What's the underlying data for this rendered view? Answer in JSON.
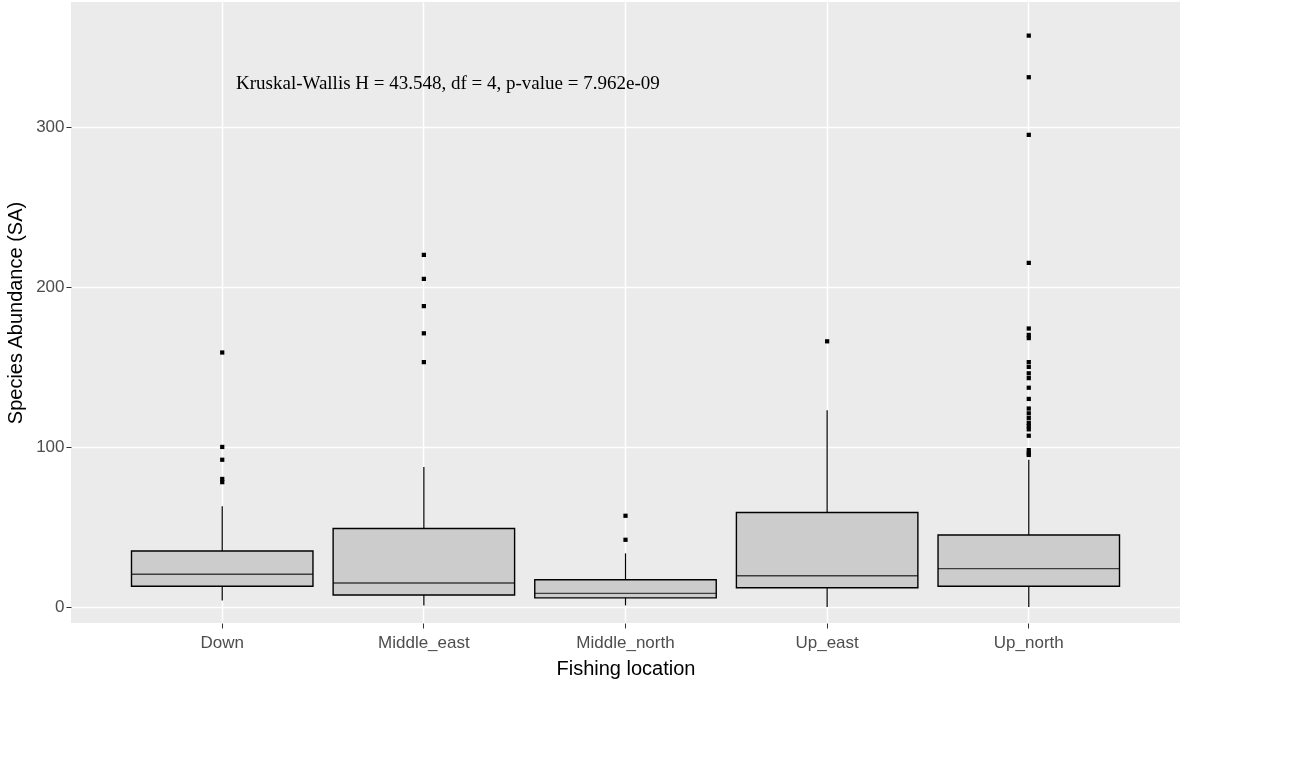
{
  "chart_data": {
    "type": "box",
    "xlabel": "Fishing location",
    "ylabel": "Species Abundance (SA)",
    "categories": [
      "Down",
      "Middle_east",
      "Middle_north",
      "Up_east",
      "Up_north"
    ],
    "boxes": [
      {
        "low": 4,
        "q1": 13,
        "median": 20.5,
        "q3": 35,
        "high": 63,
        "outliers": [
          159,
          100,
          92,
          80,
          78
        ]
      },
      {
        "low": 1,
        "q1": 7.5,
        "median": 15,
        "q3": 49,
        "high": 87.5,
        "outliers": [
          220,
          205,
          188,
          171,
          153
        ]
      },
      {
        "low": 1,
        "q1": 5.7,
        "median": 8.5,
        "q3": 17,
        "high": 33.5,
        "outliers": [
          57,
          42
        ]
      },
      {
        "low": 0,
        "q1": 12,
        "median": 19.5,
        "q3": 59,
        "high": 123,
        "outliers": [
          166
        ]
      },
      {
        "low": 0,
        "q1": 13,
        "median": 24,
        "q3": 45,
        "high": 92,
        "outliers": [
          357,
          331,
          295,
          215,
          174,
          170,
          168,
          153,
          150,
          146,
          143,
          137,
          130,
          124,
          121,
          118,
          115,
          113,
          111,
          107,
          98,
          96,
          95
        ]
      }
    ],
    "color": "#cccccc",
    "ylim": [
      -10,
      378
    ],
    "yticks": [
      0,
      100,
      200,
      300
    ],
    "grid": true,
    "annotations": [
      "Kruskal-Wallis H = 43.548, df = 4, p-value  = 7.962e-09"
    ]
  }
}
